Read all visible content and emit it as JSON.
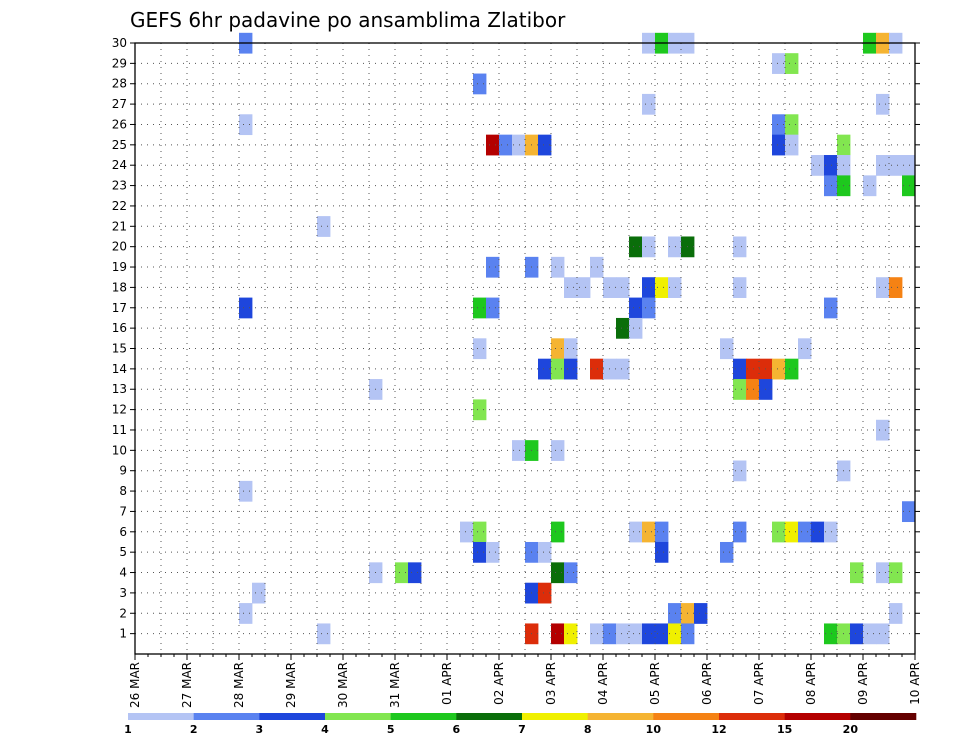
{
  "chart_data": {
    "type": "heatmap",
    "title": "GEFS 6hr padavine po ansamblima Zlatibor",
    "x_tick_labels": [
      "26 MAR",
      "27 MAR",
      "28 MAR",
      "29 MAR",
      "30 MAR",
      "31 MAR",
      "01 APR",
      "02 APR",
      "03 APR",
      "04 APR",
      "05 APR",
      "06 APR",
      "07 APR",
      "08 APR",
      "09 APR",
      "10 APR"
    ],
    "y_tick_labels": [
      "1",
      "2",
      "3",
      "4",
      "5",
      "6",
      "7",
      "8",
      "9",
      "10",
      "11",
      "12",
      "13",
      "14",
      "15",
      "16",
      "17",
      "18",
      "19",
      "20",
      "21",
      "22",
      "23",
      "24",
      "25",
      "26",
      "27",
      "28",
      "29",
      "30"
    ],
    "x_step": "6hr",
    "x_range_steps": [
      0,
      60
    ],
    "y_range": [
      0,
      30
    ],
    "grid": true,
    "colorbar": {
      "levels": [
        "1",
        "2",
        "3",
        "4",
        "5",
        "6",
        "7",
        "8",
        "10",
        "12",
        "15",
        "20"
      ],
      "colors": [
        "#b4c4f4",
        "#5a82f0",
        "#1e46dc",
        "#82e650",
        "#1ec81e",
        "#0a6e0a",
        "#f0f000",
        "#f5b432",
        "#f58214",
        "#dc2d0a",
        "#b40000",
        "#640000"
      ]
    },
    "cells": [
      {
        "t": 8.5,
        "m": 30,
        "c": 2
      },
      {
        "t": 39.5,
        "m": 30,
        "c": 1
      },
      {
        "t": 40.5,
        "m": 30,
        "c": 5
      },
      {
        "t": 41.5,
        "m": 30,
        "c": 1
      },
      {
        "t": 42.5,
        "m": 30,
        "c": 1
      },
      {
        "t": 56.5,
        "m": 30,
        "c": 5
      },
      {
        "t": 57.5,
        "m": 30,
        "c": 8
      },
      {
        "t": 58.5,
        "m": 30,
        "c": 1
      },
      {
        "t": 49.5,
        "m": 29,
        "c": 1
      },
      {
        "t": 50.5,
        "m": 29,
        "c": 4
      },
      {
        "t": 26.5,
        "m": 28,
        "c": 2
      },
      {
        "t": 39.5,
        "m": 27,
        "c": 1
      },
      {
        "t": 57.5,
        "m": 27,
        "c": 1
      },
      {
        "t": 8.5,
        "m": 26,
        "c": 1
      },
      {
        "t": 49.5,
        "m": 26,
        "c": 2
      },
      {
        "t": 50.5,
        "m": 26,
        "c": 4
      },
      {
        "t": 27.5,
        "m": 25,
        "c": 11
      },
      {
        "t": 28.5,
        "m": 25,
        "c": 2
      },
      {
        "t": 29.5,
        "m": 25,
        "c": 1
      },
      {
        "t": 30.5,
        "m": 25,
        "c": 8
      },
      {
        "t": 31.5,
        "m": 25,
        "c": 3
      },
      {
        "t": 49.5,
        "m": 25,
        "c": 3
      },
      {
        "t": 50.5,
        "m": 25,
        "c": 1
      },
      {
        "t": 54.5,
        "m": 25,
        "c": 4
      },
      {
        "t": 52.5,
        "m": 24,
        "c": 1
      },
      {
        "t": 53.5,
        "m": 24,
        "c": 3
      },
      {
        "t": 54.5,
        "m": 24,
        "c": 1
      },
      {
        "t": 57.5,
        "m": 24,
        "c": 1
      },
      {
        "t": 58.5,
        "m": 24,
        "c": 1
      },
      {
        "t": 59.5,
        "m": 24,
        "c": 1
      },
      {
        "t": 53.5,
        "m": 23,
        "c": 2
      },
      {
        "t": 54.5,
        "m": 23,
        "c": 5
      },
      {
        "t": 56.5,
        "m": 23,
        "c": 1
      },
      {
        "t": 59.5,
        "m": 23,
        "c": 5
      },
      {
        "t": 14.5,
        "m": 21,
        "c": 1
      },
      {
        "t": 38.5,
        "m": 20,
        "c": 6
      },
      {
        "t": 39.5,
        "m": 20,
        "c": 1
      },
      {
        "t": 41.5,
        "m": 20,
        "c": 1
      },
      {
        "t": 42.5,
        "m": 20,
        "c": 6
      },
      {
        "t": 46.5,
        "m": 20,
        "c": 1
      },
      {
        "t": 27.5,
        "m": 19,
        "c": 2
      },
      {
        "t": 30.5,
        "m": 19,
        "c": 2
      },
      {
        "t": 32.5,
        "m": 19,
        "c": 1
      },
      {
        "t": 35.5,
        "m": 19,
        "c": 1
      },
      {
        "t": 33.5,
        "m": 18,
        "c": 1
      },
      {
        "t": 34.5,
        "m": 18,
        "c": 1
      },
      {
        "t": 36.5,
        "m": 18,
        "c": 1
      },
      {
        "t": 37.5,
        "m": 18,
        "c": 1
      },
      {
        "t": 39.5,
        "m": 18,
        "c": 3
      },
      {
        "t": 40.5,
        "m": 18,
        "c": 7
      },
      {
        "t": 41.5,
        "m": 18,
        "c": 1
      },
      {
        "t": 46.5,
        "m": 18,
        "c": 1
      },
      {
        "t": 57.5,
        "m": 18,
        "c": 1
      },
      {
        "t": 58.5,
        "m": 18,
        "c": 9
      },
      {
        "t": 8.5,
        "m": 17,
        "c": 3
      },
      {
        "t": 26.5,
        "m": 17,
        "c": 5
      },
      {
        "t": 27.5,
        "m": 17,
        "c": 2
      },
      {
        "t": 38.5,
        "m": 17,
        "c": 3
      },
      {
        "t": 39.5,
        "m": 17,
        "c": 2
      },
      {
        "t": 53.5,
        "m": 17,
        "c": 2
      },
      {
        "t": 37.5,
        "m": 16,
        "c": 6
      },
      {
        "t": 38.5,
        "m": 16,
        "c": 1
      },
      {
        "t": 26.5,
        "m": 15,
        "c": 1
      },
      {
        "t": 32.5,
        "m": 15,
        "c": 8
      },
      {
        "t": 33.5,
        "m": 15,
        "c": 1
      },
      {
        "t": 45.5,
        "m": 15,
        "c": 1
      },
      {
        "t": 51.5,
        "m": 15,
        "c": 1
      },
      {
        "t": 31.5,
        "m": 14,
        "c": 3
      },
      {
        "t": 32.5,
        "m": 14,
        "c": 4
      },
      {
        "t": 33.5,
        "m": 14,
        "c": 3
      },
      {
        "t": 35.5,
        "m": 14,
        "c": 10
      },
      {
        "t": 36.5,
        "m": 14,
        "c": 1
      },
      {
        "t": 37.5,
        "m": 14,
        "c": 1
      },
      {
        "t": 46.5,
        "m": 14,
        "c": 3
      },
      {
        "t": 47.5,
        "m": 14,
        "c": 10
      },
      {
        "t": 48.5,
        "m": 14,
        "c": 10
      },
      {
        "t": 49.5,
        "m": 14,
        "c": 8
      },
      {
        "t": 50.5,
        "m": 14,
        "c": 5
      },
      {
        "t": 18.5,
        "m": 13,
        "c": 1
      },
      {
        "t": 46.5,
        "m": 13,
        "c": 4
      },
      {
        "t": 47.5,
        "m": 13,
        "c": 9
      },
      {
        "t": 48.5,
        "m": 13,
        "c": 3
      },
      {
        "t": 26.5,
        "m": 12,
        "c": 4
      },
      {
        "t": 57.5,
        "m": 11,
        "c": 1
      },
      {
        "t": 29.5,
        "m": 10,
        "c": 1
      },
      {
        "t": 30.5,
        "m": 10,
        "c": 5
      },
      {
        "t": 32.5,
        "m": 10,
        "c": 1
      },
      {
        "t": 46.5,
        "m": 9,
        "c": 1
      },
      {
        "t": 54.5,
        "m": 9,
        "c": 1
      },
      {
        "t": 8.5,
        "m": 8,
        "c": 1
      },
      {
        "t": 59.5,
        "m": 7,
        "c": 2
      },
      {
        "t": 25.5,
        "m": 6,
        "c": 1
      },
      {
        "t": 26.5,
        "m": 6,
        "c": 4
      },
      {
        "t": 32.5,
        "m": 6,
        "c": 5
      },
      {
        "t": 38.5,
        "m": 6,
        "c": 1
      },
      {
        "t": 39.5,
        "m": 6,
        "c": 8
      },
      {
        "t": 40.5,
        "m": 6,
        "c": 2
      },
      {
        "t": 46.5,
        "m": 6,
        "c": 2
      },
      {
        "t": 49.5,
        "m": 6,
        "c": 4
      },
      {
        "t": 50.5,
        "m": 6,
        "c": 7
      },
      {
        "t": 51.5,
        "m": 6,
        "c": 2
      },
      {
        "t": 52.5,
        "m": 6,
        "c": 3
      },
      {
        "t": 53.5,
        "m": 6,
        "c": 1
      },
      {
        "t": 26.5,
        "m": 5,
        "c": 3
      },
      {
        "t": 27.5,
        "m": 5,
        "c": 1
      },
      {
        "t": 30.5,
        "m": 5,
        "c": 2
      },
      {
        "t": 31.5,
        "m": 5,
        "c": 1
      },
      {
        "t": 40.5,
        "m": 5,
        "c": 3
      },
      {
        "t": 45.5,
        "m": 5,
        "c": 2
      },
      {
        "t": 18.5,
        "m": 4,
        "c": 1
      },
      {
        "t": 20.5,
        "m": 4,
        "c": 4
      },
      {
        "t": 21.5,
        "m": 4,
        "c": 3
      },
      {
        "t": 32.5,
        "m": 4,
        "c": 6
      },
      {
        "t": 33.5,
        "m": 4,
        "c": 2
      },
      {
        "t": 55.5,
        "m": 4,
        "c": 4
      },
      {
        "t": 57.5,
        "m": 4,
        "c": 1
      },
      {
        "t": 58.5,
        "m": 4,
        "c": 4
      },
      {
        "t": 9.5,
        "m": 3,
        "c": 1
      },
      {
        "t": 30.5,
        "m": 3,
        "c": 3
      },
      {
        "t": 31.5,
        "m": 3,
        "c": 10
      },
      {
        "t": 8.5,
        "m": 2,
        "c": 1
      },
      {
        "t": 41.5,
        "m": 2,
        "c": 2
      },
      {
        "t": 42.5,
        "m": 2,
        "c": 8
      },
      {
        "t": 43.5,
        "m": 2,
        "c": 3
      },
      {
        "t": 58.5,
        "m": 2,
        "c": 1
      },
      {
        "t": 14.5,
        "m": 1,
        "c": 1
      },
      {
        "t": 30.5,
        "m": 1,
        "c": 10
      },
      {
        "t": 32.5,
        "m": 1,
        "c": 11
      },
      {
        "t": 33.5,
        "m": 1,
        "c": 7
      },
      {
        "t": 35.5,
        "m": 1,
        "c": 1
      },
      {
        "t": 36.5,
        "m": 1,
        "c": 2
      },
      {
        "t": 37.5,
        "m": 1,
        "c": 1
      },
      {
        "t": 38.5,
        "m": 1,
        "c": 1
      },
      {
        "t": 39.5,
        "m": 1,
        "c": 3
      },
      {
        "t": 40.5,
        "m": 1,
        "c": 3
      },
      {
        "t": 41.5,
        "m": 1,
        "c": 7
      },
      {
        "t": 42.5,
        "m": 1,
        "c": 2
      },
      {
        "t": 53.5,
        "m": 1,
        "c": 5
      },
      {
        "t": 54.5,
        "m": 1,
        "c": 4
      },
      {
        "t": 55.5,
        "m": 1,
        "c": 3
      },
      {
        "t": 56.5,
        "m": 1,
        "c": 1
      },
      {
        "t": 57.5,
        "m": 1,
        "c": 1
      }
    ]
  }
}
